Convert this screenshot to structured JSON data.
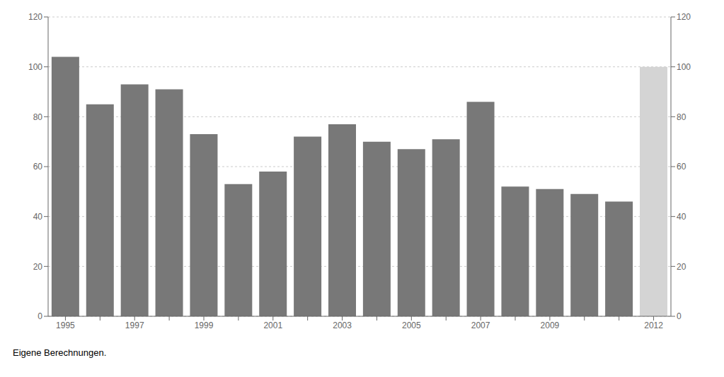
{
  "chart_data": {
    "type": "bar",
    "categories": [
      "1995",
      null,
      "1997",
      null,
      "1999",
      null,
      "2001",
      null,
      "2003",
      null,
      "2005",
      null,
      "2007",
      null,
      "2009",
      null,
      null,
      "2012"
    ],
    "values": [
      104,
      85,
      93,
      91,
      73,
      53,
      58,
      72,
      77,
      70,
      67,
      71,
      86,
      52,
      51,
      49,
      46,
      100
    ],
    "colors": [
      "#787878",
      "#787878",
      "#787878",
      "#787878",
      "#787878",
      "#787878",
      "#787878",
      "#787878",
      "#787878",
      "#787878",
      "#787878",
      "#787878",
      "#787878",
      "#787878",
      "#787878",
      "#787878",
      "#787878",
      "#d4d4d4"
    ],
    "ylim": [
      0,
      120
    ],
    "yticks": [
      0,
      20,
      40,
      60,
      80,
      100,
      120
    ],
    "y2lim": [
      0,
      120
    ],
    "y2ticks": [
      0,
      20,
      40,
      60,
      80,
      100,
      120
    ],
    "grid": true,
    "footnote": "Eigene Berechnungen."
  }
}
